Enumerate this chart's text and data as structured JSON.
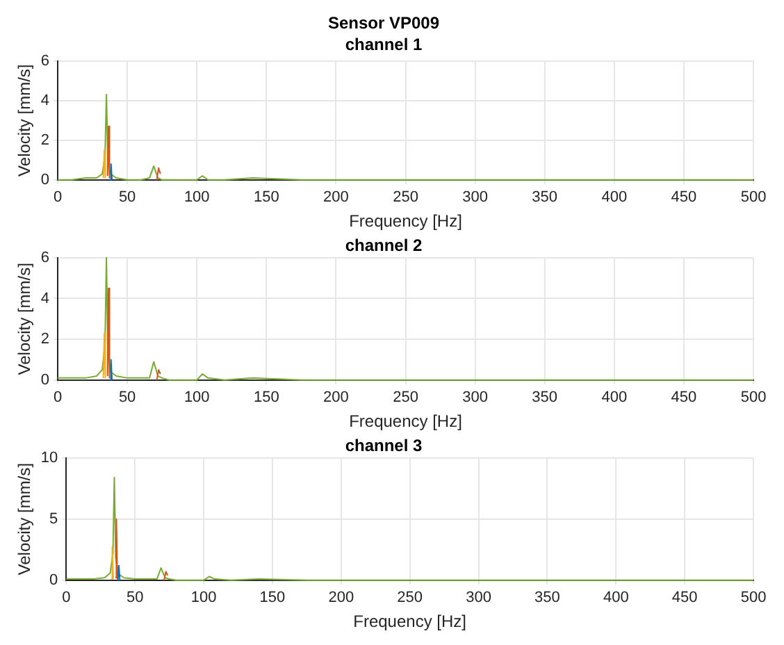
{
  "chart_data": [
    {
      "type": "line",
      "title": "Sensor VP009",
      "subtitle": "channel 1",
      "xlabel": "Frequency [Hz]",
      "ylabel": "Velocity [mm/s]",
      "xlim": [
        0,
        500
      ],
      "xticks": [
        0,
        50,
        100,
        150,
        200,
        250,
        300,
        350,
        400,
        450,
        500
      ],
      "ylim": [
        0,
        6
      ],
      "yticks": [
        0,
        2,
        4,
        6
      ],
      "grid": true,
      "x": [
        0,
        10,
        20,
        28,
        32,
        34,
        35,
        36,
        38,
        42,
        50,
        60,
        66,
        69,
        72,
        75,
        80,
        100,
        104,
        108,
        120,
        140,
        175,
        250,
        350,
        500
      ],
      "series": [
        {
          "color": "#77ac30",
          "values": [
            0,
            0,
            0.1,
            0.1,
            0.3,
            1.2,
            4.3,
            1.0,
            0.3,
            0.1,
            0,
            0,
            0.1,
            0.7,
            0.1,
            0,
            0,
            0,
            0.2,
            0,
            0,
            0.1,
            0,
            0,
            0,
            0
          ]
        },
        {
          "color": "#d95319",
          "x": [
            35.8,
            36.5,
            37.2
          ],
          "values": [
            0.2,
            2.7,
            0.1
          ]
        },
        {
          "color": "#d95319",
          "x": [
            71.2,
            72.5,
            73.8
          ],
          "values": [
            0,
            0.6,
            0.3
          ]
        },
        {
          "color": "#edb120",
          "x": [
            32.8,
            33.5,
            34.2
          ],
          "values": [
            0.1,
            1.5,
            0.1
          ]
        },
        {
          "color": "#0072bd",
          "x": [
            37.6,
            38.3,
            39
          ],
          "values": [
            0,
            0.8,
            0
          ]
        }
      ]
    },
    {
      "type": "line",
      "title": "channel 2",
      "xlabel": "Frequency [Hz]",
      "ylabel": "Velocity [mm/s]",
      "xlim": [
        0,
        500
      ],
      "xticks": [
        0,
        50,
        100,
        150,
        200,
        250,
        300,
        350,
        400,
        450,
        500
      ],
      "ylim": [
        0,
        6
      ],
      "yticks": [
        0,
        2,
        4,
        6
      ],
      "grid": true,
      "x": [
        0,
        10,
        20,
        28,
        32,
        34,
        35,
        36,
        38,
        42,
        50,
        60,
        66,
        69,
        72,
        75,
        80,
        100,
        104,
        108,
        120,
        140,
        175,
        250,
        350,
        500
      ],
      "series": [
        {
          "color": "#77ac30",
          "values": [
            0.1,
            0.1,
            0.1,
            0.2,
            0.5,
            1.8,
            6.0,
            1.4,
            0.4,
            0.2,
            0.1,
            0.1,
            0.1,
            0.9,
            0.2,
            0.1,
            0,
            0,
            0.3,
            0.1,
            0,
            0.1,
            0,
            0,
            0,
            0
          ]
        },
        {
          "color": "#d95319",
          "x": [
            35.8,
            36.5,
            37.2
          ],
          "values": [
            0.2,
            4.5,
            0.1
          ]
        },
        {
          "color": "#d95319",
          "x": [
            71.2,
            72.5,
            73.8
          ],
          "values": [
            0,
            0.5,
            0.3
          ]
        },
        {
          "color": "#edb120",
          "x": [
            32.8,
            33.5,
            34.2
          ],
          "values": [
            0.1,
            2.3,
            0.1
          ]
        },
        {
          "color": "#0072bd",
          "x": [
            37.6,
            38.3,
            39
          ],
          "values": [
            0,
            1.0,
            0
          ]
        }
      ]
    },
    {
      "type": "line",
      "title": "channel 3",
      "xlabel": "Frequency [Hz]",
      "ylabel": "Velocity [mm/s]",
      "xlim": [
        0,
        500
      ],
      "xticks": [
        0,
        50,
        100,
        150,
        200,
        250,
        300,
        350,
        400,
        450,
        500
      ],
      "ylim": [
        0,
        10
      ],
      "yticks": [
        0,
        5,
        10
      ],
      "grid": true,
      "x": [
        0,
        10,
        20,
        28,
        32,
        34,
        35,
        36,
        38,
        42,
        50,
        60,
        66,
        69,
        72,
        75,
        80,
        100,
        104,
        108,
        120,
        140,
        175,
        250,
        350,
        500
      ],
      "series": [
        {
          "color": "#77ac30",
          "values": [
            0.1,
            0.1,
            0.1,
            0.2,
            0.6,
            2.2,
            8.4,
            1.8,
            0.5,
            0.2,
            0.1,
            0.1,
            0.1,
            1.0,
            0.2,
            0.1,
            0,
            0,
            0.3,
            0.1,
            0,
            0.1,
            0,
            0,
            0,
            0
          ]
        },
        {
          "color": "#d95319",
          "x": [
            35.8,
            36.5,
            37.2
          ],
          "values": [
            0.2,
            5.0,
            0.1
          ]
        },
        {
          "color": "#d95319",
          "x": [
            71.2,
            72.5,
            73.8
          ],
          "values": [
            0,
            0.7,
            0.4
          ]
        },
        {
          "color": "#edb120",
          "x": [
            32.8,
            33.5,
            34.2
          ],
          "values": [
            0.1,
            2.7,
            0.1
          ]
        },
        {
          "color": "#0072bd",
          "x": [
            37.6,
            38.3,
            39
          ],
          "values": [
            0,
            1.2,
            0
          ]
        }
      ]
    }
  ]
}
